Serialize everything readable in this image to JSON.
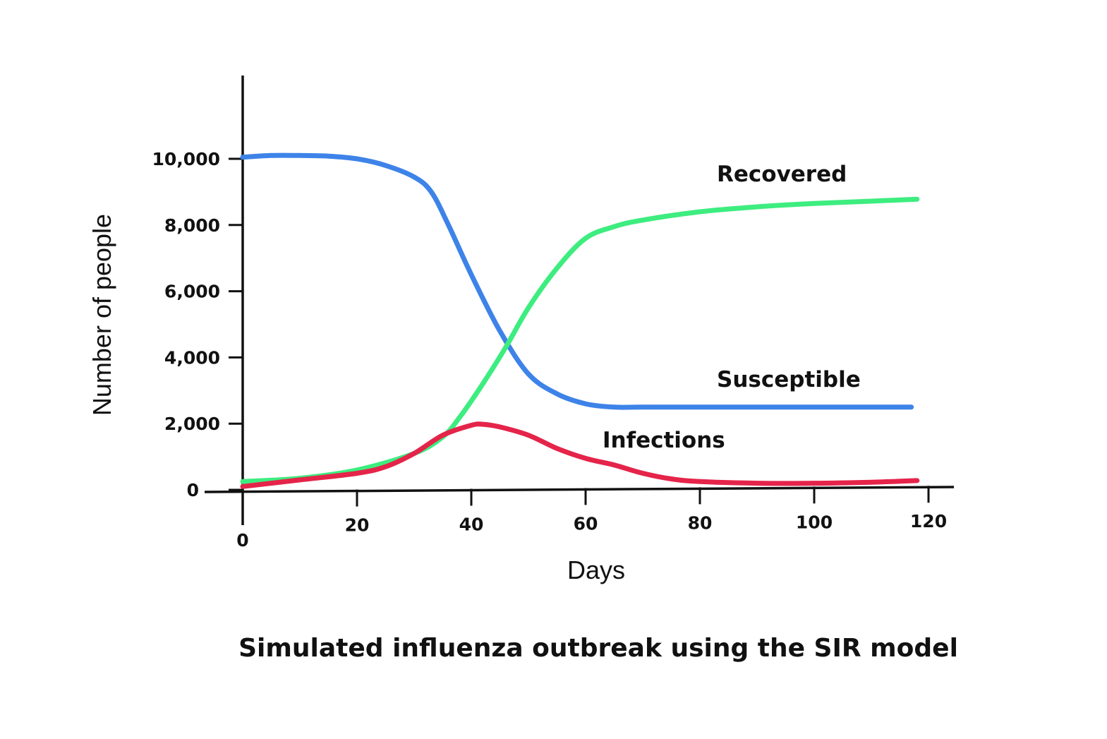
{
  "chart_data": {
    "type": "line",
    "title": "Simulated influenza outbreak using the SIR model",
    "xlabel": "Days",
    "ylabel": "Number of people",
    "xlim": [
      0,
      120
    ],
    "ylim": [
      0,
      12000
    ],
    "x_ticks": [
      {
        "value": 0,
        "label": "0"
      },
      {
        "value": 20,
        "label": "20"
      },
      {
        "value": 40,
        "label": "40"
      },
      {
        "value": 60,
        "label": "60"
      },
      {
        "value": 80,
        "label": "80"
      },
      {
        "value": 100,
        "label": "100"
      },
      {
        "value": 120,
        "label": "120"
      }
    ],
    "y_ticks": [
      {
        "value": 0,
        "label": "0"
      },
      {
        "value": 2000,
        "label": "2,000"
      },
      {
        "value": 4000,
        "label": "4,000"
      },
      {
        "value": 6000,
        "label": "6,000"
      },
      {
        "value": 8000,
        "label": "8,000"
      },
      {
        "value": 10000,
        "label": "10,000"
      }
    ],
    "grid": false,
    "series": [
      {
        "name": "Susceptible",
        "color": "#3d83e8",
        "x": [
          0,
          5,
          10,
          15,
          20,
          25,
          30,
          33,
          36,
          40,
          45,
          50,
          55,
          60,
          65,
          70,
          80,
          90,
          100,
          110,
          117
        ],
        "y": [
          10050,
          10100,
          10100,
          10080,
          10000,
          9800,
          9450,
          9000,
          8000,
          6500,
          4800,
          3500,
          2900,
          2600,
          2500,
          2500,
          2500,
          2500,
          2500,
          2500,
          2500
        ]
      },
      {
        "name": "Recovered",
        "color": "#3ded7f",
        "x": [
          0,
          10,
          20,
          30,
          35,
          38,
          42,
          46,
          50,
          55,
          60,
          65,
          70,
          80,
          90,
          100,
          110,
          118
        ],
        "y": [
          250,
          350,
          600,
          1100,
          1600,
          2200,
          3200,
          4300,
          5500,
          6700,
          7600,
          7950,
          8150,
          8400,
          8550,
          8650,
          8720,
          8780
        ]
      },
      {
        "name": "Infections",
        "color": "#e5244a",
        "x": [
          0,
          10,
          20,
          25,
          30,
          35,
          40,
          42,
          45,
          50,
          55,
          60,
          65,
          70,
          75,
          80,
          90,
          100,
          110,
          118
        ],
        "y": [
          100,
          300,
          500,
          700,
          1100,
          1650,
          1950,
          1980,
          1900,
          1650,
          1250,
          950,
          750,
          500,
          330,
          250,
          200,
          200,
          230,
          280
        ]
      }
    ]
  }
}
